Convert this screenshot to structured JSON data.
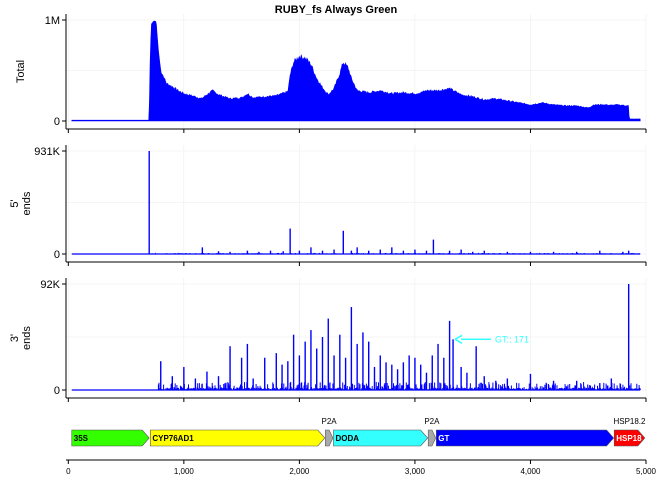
{
  "chart_data": {
    "type": "line",
    "title": "RUBY_fs Always Green",
    "x": {
      "range": [
        -20,
        5000
      ],
      "ticks": [
        0,
        1000,
        2000,
        3000,
        4000,
        5000
      ],
      "tick_labels": [
        "0",
        "1,000",
        "2,000",
        "3,000",
        "4,000",
        "5,000"
      ]
    },
    "panels": [
      {
        "id": "total",
        "ylabel": "Total",
        "ylim": [
          0,
          1000000
        ],
        "y_tick_labels": [
          "1M",
          "0"
        ],
        "render": "area",
        "color": "#0000ff",
        "points": [
          [
            30,
            8000
          ],
          [
            700,
            8000
          ],
          [
            702,
            180000
          ],
          [
            710,
            700000
          ],
          [
            720,
            960000
          ],
          [
            740,
            990000
          ],
          [
            760,
            985000
          ],
          [
            780,
            700000
          ],
          [
            800,
            500000
          ],
          [
            850,
            370000
          ],
          [
            900,
            340000
          ],
          [
            950,
            300000
          ],
          [
            1000,
            270000
          ],
          [
            1100,
            240000
          ],
          [
            1150,
            220000
          ],
          [
            1250,
            300000
          ],
          [
            1300,
            260000
          ],
          [
            1400,
            220000
          ],
          [
            1500,
            230000
          ],
          [
            1550,
            270000
          ],
          [
            1600,
            230000
          ],
          [
            1700,
            240000
          ],
          [
            1800,
            250000
          ],
          [
            1900,
            290000
          ],
          [
            1920,
            450000
          ],
          [
            1950,
            580000
          ],
          [
            2000,
            640000
          ],
          [
            2050,
            620000
          ],
          [
            2100,
            560000
          ],
          [
            2150,
            420000
          ],
          [
            2200,
            330000
          ],
          [
            2250,
            260000
          ],
          [
            2300,
            320000
          ],
          [
            2350,
            470000
          ],
          [
            2380,
            580000
          ],
          [
            2420,
            530000
          ],
          [
            2450,
            420000
          ],
          [
            2500,
            300000
          ],
          [
            2600,
            280000
          ],
          [
            2700,
            300000
          ],
          [
            2800,
            270000
          ],
          [
            2900,
            280000
          ],
          [
            3000,
            270000
          ],
          [
            3050,
            280000
          ],
          [
            3100,
            300000
          ],
          [
            3200,
            300000
          ],
          [
            3300,
            320000
          ],
          [
            3350,
            290000
          ],
          [
            3400,
            260000
          ],
          [
            3500,
            240000
          ],
          [
            3600,
            210000
          ],
          [
            3700,
            220000
          ],
          [
            3800,
            200000
          ],
          [
            3900,
            180000
          ],
          [
            4000,
            160000
          ],
          [
            4100,
            180000
          ],
          [
            4200,
            160000
          ],
          [
            4300,
            150000
          ],
          [
            4400,
            150000
          ],
          [
            4500,
            130000
          ],
          [
            4550,
            160000
          ],
          [
            4650,
            160000
          ],
          [
            4700,
            155000
          ],
          [
            4750,
            160000
          ],
          [
            4800,
            155000
          ],
          [
            4850,
            150000
          ],
          [
            4855,
            20000
          ],
          [
            4950,
            20000
          ]
        ],
        "noise": 0.08
      },
      {
        "id": "five_prime",
        "ylabel": "5'\nends",
        "ylim": [
          0,
          931000
        ],
        "y_tick_labels": [
          "931K",
          "0"
        ],
        "render": "spikes",
        "color": "#0000ff",
        "points": [
          [
            700,
            931000
          ],
          [
            1160,
            60000
          ],
          [
            1300,
            25000
          ],
          [
            1400,
            20000
          ],
          [
            1550,
            30000
          ],
          [
            1650,
            20000
          ],
          [
            1750,
            30000
          ],
          [
            1860,
            25000
          ],
          [
            1920,
            230000
          ],
          [
            2000,
            30000
          ],
          [
            2100,
            60000
          ],
          [
            2200,
            30000
          ],
          [
            2300,
            40000
          ],
          [
            2380,
            210000
          ],
          [
            2450,
            30000
          ],
          [
            2500,
            60000
          ],
          [
            2600,
            30000
          ],
          [
            2700,
            40000
          ],
          [
            2800,
            60000
          ],
          [
            2900,
            30000
          ],
          [
            3000,
            40000
          ],
          [
            3100,
            30000
          ],
          [
            3160,
            130000
          ],
          [
            3300,
            30000
          ],
          [
            3400,
            40000
          ],
          [
            3500,
            20000
          ],
          [
            3600,
            30000
          ],
          [
            3800,
            20000
          ],
          [
            4000,
            20000
          ],
          [
            4200,
            20000
          ],
          [
            4400,
            20000
          ],
          [
            4600,
            30000
          ],
          [
            4800,
            20000
          ],
          [
            4850,
            30000
          ]
        ],
        "noise_max": 10000,
        "noise_start": 700
      },
      {
        "id": "three_prime",
        "ylabel": "3'\nends",
        "ylim": [
          0,
          92000
        ],
        "y_tick_labels": [
          "92K",
          "0"
        ],
        "render": "spikes",
        "color": "#0000ff",
        "points": [
          [
            800,
            25000
          ],
          [
            900,
            12000
          ],
          [
            1000,
            20000
          ],
          [
            1100,
            10000
          ],
          [
            1200,
            16000
          ],
          [
            1300,
            12000
          ],
          [
            1400,
            38000
          ],
          [
            1500,
            28000
          ],
          [
            1550,
            40000
          ],
          [
            1600,
            10000
          ],
          [
            1700,
            28000
          ],
          [
            1800,
            32000
          ],
          [
            1850,
            22000
          ],
          [
            1900,
            25000
          ],
          [
            1950,
            48000
          ],
          [
            2000,
            30000
          ],
          [
            2050,
            42000
          ],
          [
            2100,
            52000
          ],
          [
            2150,
            36000
          ],
          [
            2200,
            46000
          ],
          [
            2250,
            62000
          ],
          [
            2300,
            30000
          ],
          [
            2350,
            48000
          ],
          [
            2400,
            28000
          ],
          [
            2450,
            72000
          ],
          [
            2500,
            40000
          ],
          [
            2550,
            50000
          ],
          [
            2600,
            42000
          ],
          [
            2650,
            20000
          ],
          [
            2700,
            30000
          ],
          [
            2750,
            24000
          ],
          [
            2800,
            22000
          ],
          [
            2850,
            18000
          ],
          [
            2900,
            24000
          ],
          [
            2950,
            30000
          ],
          [
            3000,
            28000
          ],
          [
            3050,
            22000
          ],
          [
            3100,
            15000
          ],
          [
            3150,
            30000
          ],
          [
            3200,
            40000
          ],
          [
            3250,
            28000
          ],
          [
            3300,
            60000
          ],
          [
            3330,
            44000
          ],
          [
            3400,
            20000
          ],
          [
            3450,
            15000
          ],
          [
            3530,
            38000
          ],
          [
            3600,
            12000
          ],
          [
            3700,
            8000
          ],
          [
            3800,
            10000
          ],
          [
            4000,
            14000
          ],
          [
            4200,
            8000
          ],
          [
            4400,
            8000
          ],
          [
            4600,
            6000
          ],
          [
            4700,
            10000
          ],
          [
            4850,
            92000
          ]
        ],
        "noise_max": 7000,
        "noise_start": 780,
        "annotation": {
          "text": "GT:: 171",
          "x": 3330,
          "y": 44000,
          "arrow_color": "#33ffff"
        }
      }
    ],
    "features": [
      {
        "label": "35S",
        "start": 30,
        "end": 700,
        "color": "#33ff00"
      },
      {
        "label": "CYP76AD1",
        "start": 710,
        "end": 2220,
        "color": "#ffff00"
      },
      {
        "label": "",
        "start": 2225,
        "end": 2290,
        "color": "#a9a9a9"
      },
      {
        "label": "DODA",
        "start": 2295,
        "end": 3110,
        "color": "#33ffff"
      },
      {
        "label": "",
        "start": 3115,
        "end": 3180,
        "color": "#a9a9a9"
      },
      {
        "label": "GT",
        "start": 3185,
        "end": 4720,
        "color": "#0000ff"
      },
      {
        "label": "HSP18",
        "start": 4725,
        "end": 4990,
        "color": "#ff0000"
      }
    ],
    "feature_top_labels": [
      {
        "text": "P2A",
        "x": 2257
      },
      {
        "text": "P2A",
        "x": 3147
      },
      {
        "text": "HSP18.2",
        "x": 4857
      }
    ]
  }
}
